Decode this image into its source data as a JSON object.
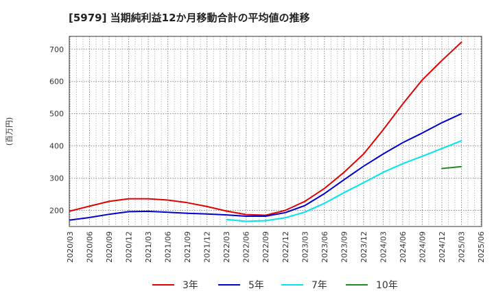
{
  "chart_data": {
    "type": "line",
    "title": "[5979]  当期純利益12か月移動合計の平均値の推移",
    "ylabel": "(百万円)",
    "xlabel": "",
    "ylim": [
      150,
      740
    ],
    "yticks": [
      200,
      300,
      400,
      500,
      600,
      700
    ],
    "grid": true,
    "legend_position": "bottom",
    "x_ticks": [
      "2020/03",
      "2020/06",
      "2020/09",
      "2020/12",
      "2021/03",
      "2021/06",
      "2021/09",
      "2021/12",
      "2022/03",
      "2022/06",
      "2022/09",
      "2022/12",
      "2023/03",
      "2023/06",
      "2023/09",
      "2023/12",
      "2024/03",
      "2024/06",
      "2024/09",
      "2024/12",
      "2025/03",
      "2025/06"
    ],
    "series": [
      {
        "name": "3年",
        "color": "#e00000",
        "points": [
          [
            "2020/03",
            198
          ],
          [
            "2020/06",
            213
          ],
          [
            "2020/09",
            228
          ],
          [
            "2020/12",
            236
          ],
          [
            "2021/03",
            236
          ],
          [
            "2021/06",
            232
          ],
          [
            "2021/09",
            224
          ],
          [
            "2021/12",
            212
          ],
          [
            "2022/03",
            198
          ],
          [
            "2022/06",
            187
          ],
          [
            "2022/09",
            185
          ],
          [
            "2022/12",
            200
          ],
          [
            "2023/03",
            228
          ],
          [
            "2023/06",
            268
          ],
          [
            "2023/09",
            318
          ],
          [
            "2023/12",
            375
          ],
          [
            "2024/03",
            450
          ],
          [
            "2024/06",
            530
          ],
          [
            "2024/09",
            605
          ],
          [
            "2024/12",
            665
          ],
          [
            "2025/03",
            722
          ]
        ]
      },
      {
        "name": "5年",
        "color": "#0000cc",
        "points": [
          [
            "2020/03",
            170
          ],
          [
            "2020/06",
            178
          ],
          [
            "2020/09",
            188
          ],
          [
            "2020/12",
            196
          ],
          [
            "2021/03",
            197
          ],
          [
            "2021/06",
            194
          ],
          [
            "2021/09",
            191
          ],
          [
            "2021/12",
            189
          ],
          [
            "2022/03",
            186
          ],
          [
            "2022/06",
            182
          ],
          [
            "2022/09",
            182
          ],
          [
            "2022/12",
            193
          ],
          [
            "2023/03",
            215
          ],
          [
            "2023/06",
            252
          ],
          [
            "2023/09",
            295
          ],
          [
            "2023/12",
            337
          ],
          [
            "2024/03",
            375
          ],
          [
            "2024/06",
            410
          ],
          [
            "2024/09",
            440
          ],
          [
            "2024/12",
            472
          ],
          [
            "2025/03",
            500
          ]
        ]
      },
      {
        "name": "7年",
        "color": "#00e5ee",
        "points": [
          [
            "2022/03",
            172
          ],
          [
            "2022/06",
            166
          ],
          [
            "2022/09",
            168
          ],
          [
            "2022/12",
            177
          ],
          [
            "2023/03",
            195
          ],
          [
            "2023/06",
            222
          ],
          [
            "2023/09",
            255
          ],
          [
            "2023/12",
            286
          ],
          [
            "2024/03",
            318
          ],
          [
            "2024/06",
            345
          ],
          [
            "2024/09",
            368
          ],
          [
            "2024/12",
            392
          ],
          [
            "2025/03",
            416
          ]
        ]
      },
      {
        "name": "10年",
        "color": "#228b22",
        "points": [
          [
            "2024/12",
            330
          ],
          [
            "2025/03",
            336
          ]
        ]
      }
    ]
  }
}
